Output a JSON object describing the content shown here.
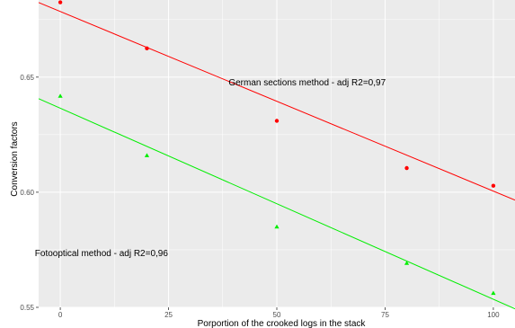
{
  "chart_data": {
    "type": "scatter",
    "xlabel": "Porportion of the crooked logs in the stack",
    "ylabel": "Conversion factors",
    "x_ticks": [
      0,
      25,
      50,
      75,
      100
    ],
    "y_ticks": [
      0.55,
      0.6,
      0.65
    ],
    "y_tick_labels": [
      "0.55",
      "0.60",
      "0.65"
    ],
    "xlim": [
      -5,
      105
    ],
    "ylim": [
      0.55,
      0.6835
    ],
    "grid": true,
    "background": "#ebebeb",
    "series": [
      {
        "name": "German sections method",
        "color": "#ff0000",
        "marker": "circle",
        "points": [
          {
            "x": 0,
            "y": 0.6825
          },
          {
            "x": 20,
            "y": 0.6625
          },
          {
            "x": 50,
            "y": 0.631
          },
          {
            "x": 80,
            "y": 0.6105
          },
          {
            "x": 100,
            "y": 0.6028
          }
        ],
        "fit": {
          "intercept": 0.6785,
          "slope": -0.00078
        }
      },
      {
        "name": "Fotooptical method",
        "color": "#00ee00",
        "marker": "triangle",
        "points": [
          {
            "x": 0,
            "y": 0.6418
          },
          {
            "x": 20,
            "y": 0.616
          },
          {
            "x": 50,
            "y": 0.585
          },
          {
            "x": 80,
            "y": 0.5692
          },
          {
            "x": 100,
            "y": 0.5562
          }
        ],
        "fit": {
          "intercept": 0.6365,
          "slope": -0.00083
        }
      }
    ],
    "annotations": [
      {
        "text": "German sections method - adj R2=0,97",
        "x": 57,
        "y": 0.6475
      },
      {
        "text": "Fotooptical method - adj R2=0,96",
        "x": 9.5,
        "y": 0.5735
      }
    ]
  }
}
